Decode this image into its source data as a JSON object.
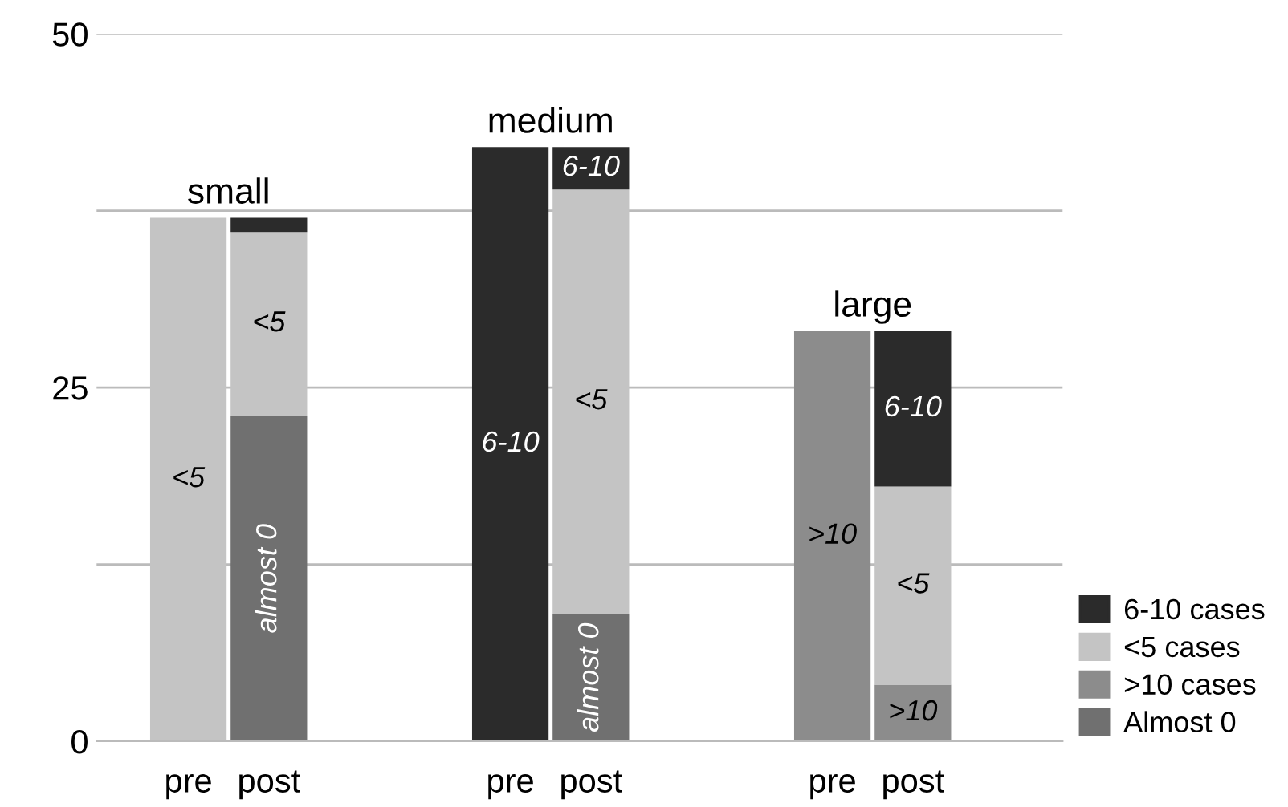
{
  "chart_data": {
    "type": "bar",
    "stacked": true,
    "categories": [
      "pre",
      "post",
      null,
      null,
      "pre",
      "post",
      null,
      null,
      "pre",
      "post"
    ],
    "series": [
      {
        "name": "Almost 0",
        "color": "#707070",
        "values": [
          null,
          23,
          null,
          null,
          null,
          9,
          null,
          null,
          null,
          null
        ],
        "value_labels": [
          null,
          "almost 0",
          null,
          null,
          null,
          "almost 0",
          null,
          null,
          null,
          null
        ]
      },
      {
        "name": ">10 cases",
        "color": "#8c8c8c",
        "values": [
          null,
          null,
          null,
          null,
          null,
          null,
          null,
          null,
          29,
          4
        ],
        "value_labels": [
          null,
          null,
          null,
          null,
          null,
          null,
          null,
          null,
          ">10",
          ">10"
        ]
      },
      {
        "name": "<5 cases",
        "color": "#c4c4c4",
        "values": [
          37,
          13,
          null,
          null,
          null,
          30,
          null,
          null,
          null,
          14
        ],
        "value_labels": [
          "<5",
          "<5",
          null,
          null,
          null,
          "<5",
          null,
          null,
          null,
          "<5"
        ]
      },
      {
        "name": "6-10 cases",
        "color": "#2b2b2b",
        "values": [
          null,
          1,
          null,
          null,
          42,
          3,
          null,
          null,
          null,
          11
        ],
        "value_labels": [
          null,
          null,
          null,
          null,
          "6-10",
          "6-10",
          null,
          null,
          null,
          "6-10"
        ]
      }
    ],
    "annotations": [
      "small",
      "medium",
      "large"
    ],
    "ylim": [
      0,
      50
    ],
    "yticks": [
      0,
      {
        "value": 12.5,
        "label": null
      },
      25,
      {
        "value": 37.5,
        "label": null
      },
      50
    ],
    "grid": "y",
    "legend": "bottom right"
  }
}
